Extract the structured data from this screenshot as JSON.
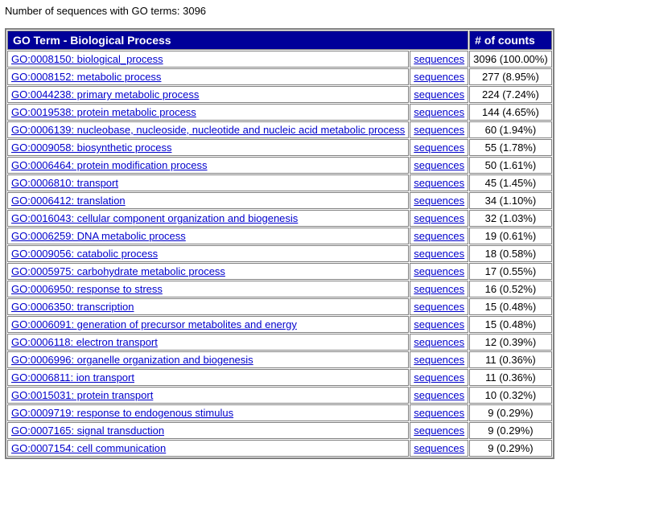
{
  "heading": {
    "label": "Number of sequences with GO terms:",
    "value": "3096"
  },
  "table": {
    "header_term": "GO Term - Biological Process",
    "header_counts": "# of counts",
    "sequences_label": "sequences",
    "header_bg": "#000099",
    "header_fg": "#ffffff",
    "link_color": "#0000cc",
    "border_color": "#808080",
    "rows": [
      {
        "term": "GO:0008150: biological_process",
        "count": "3096 (100.00%)"
      },
      {
        "term": "GO:0008152: metabolic process",
        "count": "277 (8.95%)"
      },
      {
        "term": "GO:0044238: primary metabolic process",
        "count": "224 (7.24%)"
      },
      {
        "term": "GO:0019538: protein metabolic process",
        "count": "144 (4.65%)"
      },
      {
        "term": "GO:0006139: nucleobase, nucleoside, nucleotide and nucleic acid metabolic process",
        "count": "60 (1.94%)"
      },
      {
        "term": "GO:0009058: biosynthetic process",
        "count": "55 (1.78%)"
      },
      {
        "term": "GO:0006464: protein modification process",
        "count": "50 (1.61%)"
      },
      {
        "term": "GO:0006810: transport",
        "count": "45 (1.45%)"
      },
      {
        "term": "GO:0006412: translation",
        "count": "34 (1.10%)"
      },
      {
        "term": "GO:0016043: cellular component organization and biogenesis",
        "count": "32 (1.03%)"
      },
      {
        "term": "GO:0006259: DNA metabolic process",
        "count": "19 (0.61%)"
      },
      {
        "term": "GO:0009056: catabolic process",
        "count": "18 (0.58%)"
      },
      {
        "term": "GO:0005975: carbohydrate metabolic process",
        "count": "17 (0.55%)"
      },
      {
        "term": "GO:0006950: response to stress",
        "count": "16 (0.52%)"
      },
      {
        "term": "GO:0006350: transcription",
        "count": "15 (0.48%)"
      },
      {
        "term": "GO:0006091: generation of precursor metabolites and energy",
        "count": "15 (0.48%)"
      },
      {
        "term": "GO:0006118: electron transport",
        "count": "12 (0.39%)"
      },
      {
        "term": "GO:0006996: organelle organization and biogenesis",
        "count": "11 (0.36%)"
      },
      {
        "term": "GO:0006811: ion transport",
        "count": "11 (0.36%)"
      },
      {
        "term": "GO:0015031: protein transport",
        "count": "10 (0.32%)"
      },
      {
        "term": "GO:0009719: response to endogenous stimulus",
        "count": "9 (0.29%)"
      },
      {
        "term": "GO:0007165: signal transduction",
        "count": "9 (0.29%)"
      },
      {
        "term": "GO:0007154: cell communication",
        "count": "9 (0.29%)"
      }
    ]
  }
}
